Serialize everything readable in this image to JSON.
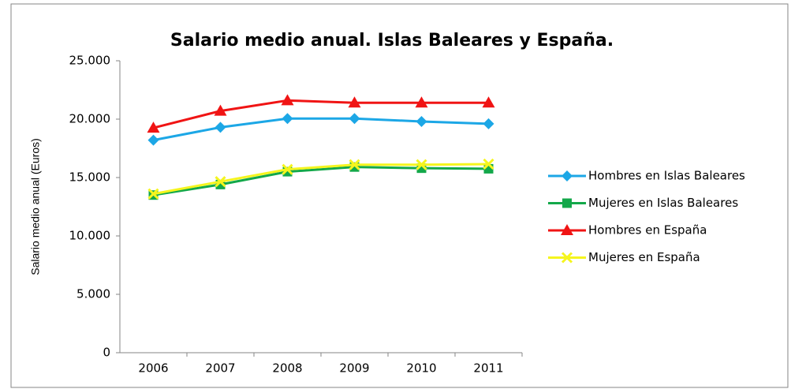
{
  "chart_data": {
    "type": "line",
    "title": "Salario medio anual. Islas Baleares y España.",
    "y_label": "Salario medio anual (Euros)",
    "categories": [
      "2006",
      "2007",
      "2008",
      "2009",
      "2010",
      "2011"
    ],
    "ylim": [
      0,
      25000
    ],
    "yticks": [
      0,
      {
        "value": 5000,
        "label": "5.000"
      },
      {
        "value": 10000,
        "label": "10.000"
      },
      {
        "value": 15000,
        "label": "15.000"
      },
      {
        "value": 20000,
        "label": "20.000"
      },
      {
        "value": 25000,
        "label": "25.000"
      }
    ],
    "grid": false,
    "legend": "right",
    "series": [
      {
        "name": "Hombres en Islas Baleares",
        "color": "#1ca7e6",
        "marker": "diamond",
        "values": [
          18200,
          19300,
          20050,
          20050,
          19800,
          19600
        ]
      },
      {
        "name": "Mujeres en Islas Baleares",
        "color": "#13a84a",
        "marker": "square",
        "values": [
          13500,
          14400,
          15500,
          15900,
          15800,
          15750
        ]
      },
      {
        "name": "Hombres en España",
        "color": "#f01414",
        "marker": "triangle",
        "values": [
          19250,
          20700,
          21600,
          21400,
          21400,
          21400
        ]
      },
      {
        "name": "Mujeres en España",
        "color": "#f5f51e",
        "marker": "x",
        "values": [
          13600,
          14650,
          15700,
          16100,
          16100,
          16150
        ]
      }
    ]
  }
}
